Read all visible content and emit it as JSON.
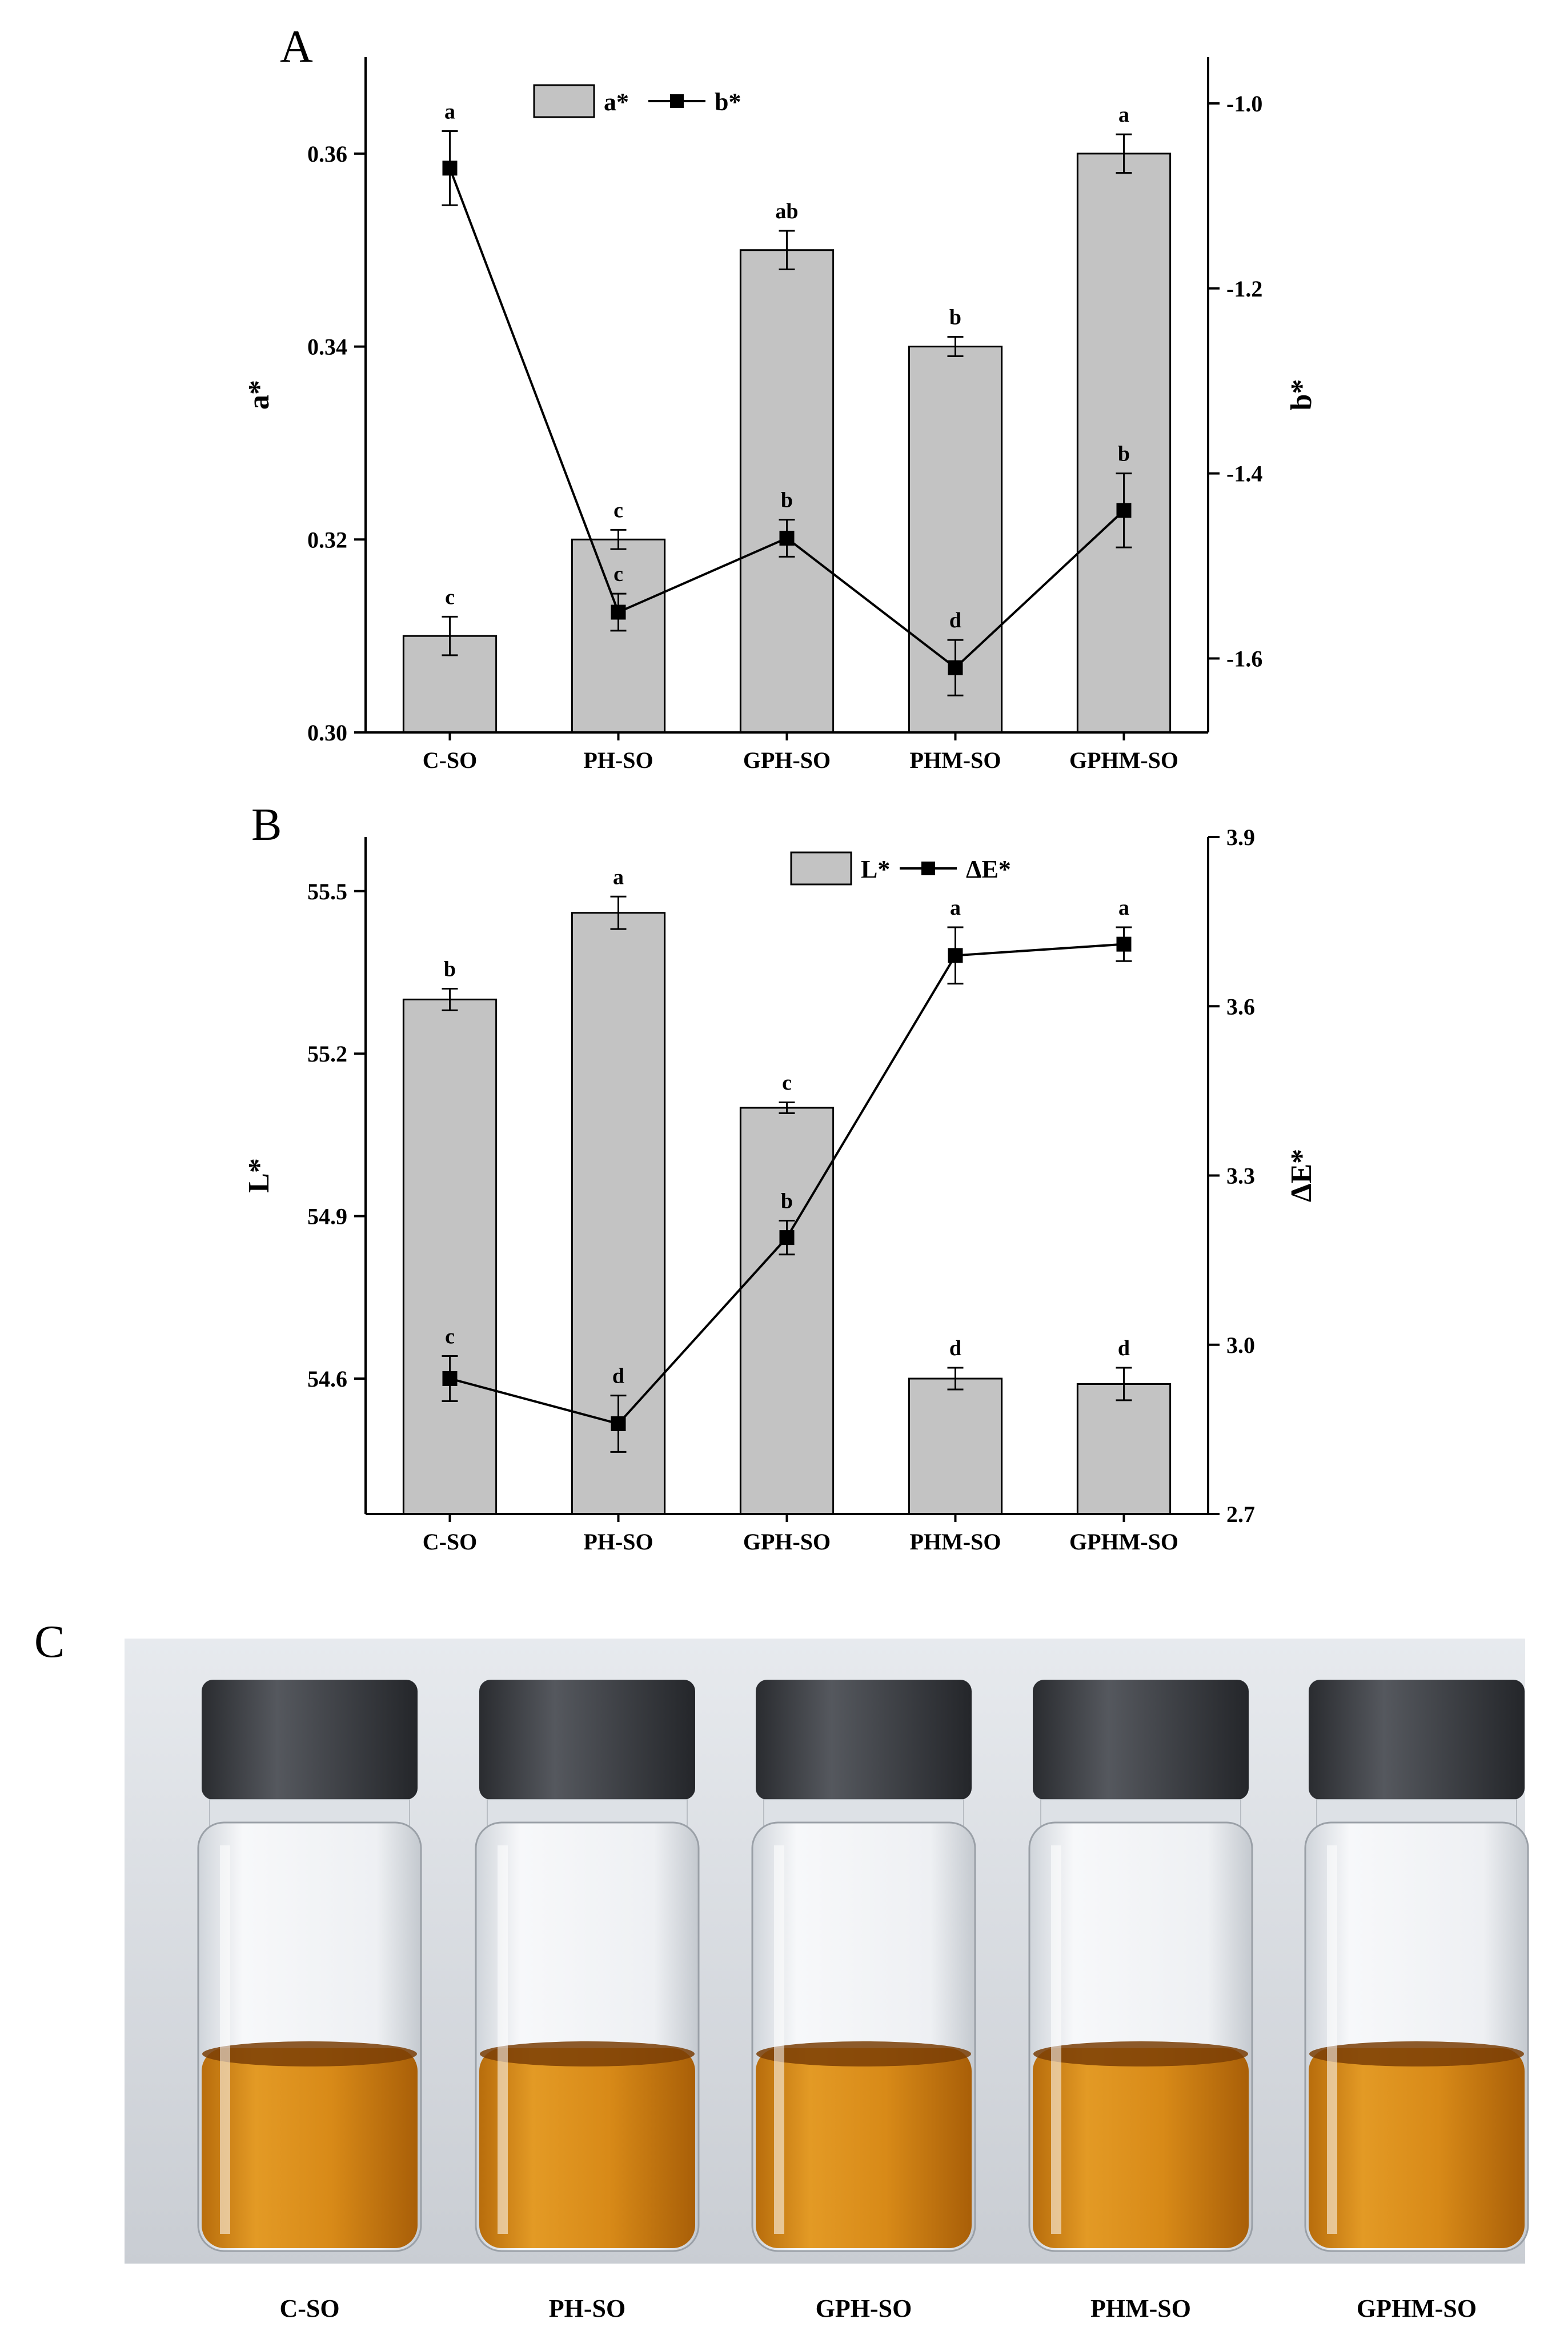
{
  "panels": {
    "A": "A",
    "B": "B",
    "C": "C"
  },
  "chart_data": [
    {
      "id": "A",
      "type": "bar",
      "categories": [
        "C-SO",
        "PH-SO",
        "GPH-SO",
        "PHM-SO",
        "GPHM-SO"
      ],
      "ylabel": "a*",
      "ylim": [
        0.3,
        0.37
      ],
      "yticks": [
        "0.30",
        "0.32",
        "0.34",
        "0.36"
      ],
      "y2label": "b*",
      "y2lim": [
        -1.68,
        -0.95
      ],
      "y2ticks": [
        "-1.6",
        "-1.4",
        "-1.2",
        "-1.0"
      ],
      "legend": [
        "a*",
        "b*"
      ],
      "legend_position": "top-center",
      "series": [
        {
          "name": "a*",
          "type": "bar",
          "axis": "left",
          "values": [
            0.31,
            0.32,
            0.35,
            0.34,
            0.36
          ],
          "errors": [
            0.002,
            0.001,
            0.002,
            0.001,
            0.002
          ],
          "labels": [
            "c",
            "c",
            "ab",
            "b",
            "a"
          ]
        },
        {
          "name": "b*",
          "type": "line",
          "axis": "right",
          "values": [
            -1.07,
            -1.55,
            -1.47,
            -1.61,
            -1.44
          ],
          "errors": [
            0.04,
            0.02,
            0.02,
            0.03,
            0.04
          ],
          "labels": [
            "a",
            "c",
            "b",
            "d",
            "b"
          ]
        }
      ]
    },
    {
      "id": "B",
      "type": "bar",
      "categories": [
        "C-SO",
        "PH-SO",
        "GPH-SO",
        "PHM-SO",
        "GPHM-SO"
      ],
      "ylabel": "L*",
      "ylim": [
        54.35,
        55.6
      ],
      "yticks": [
        "54.6",
        "54.9",
        "55.2",
        "55.5"
      ],
      "y2label": "ΔE*",
      "y2lim": [
        2.7,
        3.9
      ],
      "y2ticks": [
        "2.7",
        "3.0",
        "3.3",
        "3.6",
        "3.9"
      ],
      "legend": [
        "L*",
        "ΔE*"
      ],
      "legend_position": "top-right",
      "series": [
        {
          "name": "L*",
          "type": "bar",
          "axis": "left",
          "values": [
            55.3,
            55.46,
            55.1,
            54.6,
            54.59
          ],
          "errors": [
            0.02,
            0.03,
            0.01,
            0.02,
            0.03
          ],
          "labels": [
            "b",
            "a",
            "c",
            "d",
            "d"
          ]
        },
        {
          "name": "ΔE*",
          "type": "line",
          "axis": "right",
          "values": [
            2.94,
            2.86,
            3.19,
            3.69,
            3.71
          ],
          "errors": [
            0.04,
            0.05,
            0.03,
            0.05,
            0.03
          ],
          "labels": [
            "c",
            "d",
            "b",
            "a",
            "a"
          ]
        }
      ]
    }
  ],
  "photo": {
    "labels": [
      "C-SO",
      "PH-SO",
      "GPH-SO",
      "PHM-SO",
      "GPHM-SO"
    ],
    "colors": {
      "background": "#dfe3e8",
      "cap": "#3a3d42",
      "oil": "#d98a18",
      "glass": "#f2f4f6"
    }
  }
}
